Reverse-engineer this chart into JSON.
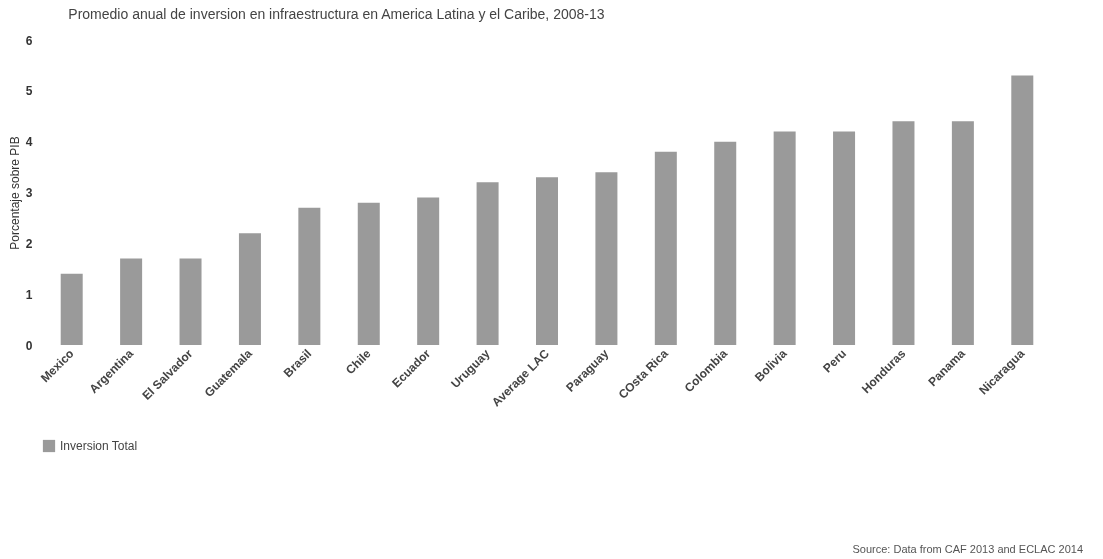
{
  "chart_data": {
    "type": "bar",
    "title": "Promedio anual de inversion en infraestructura en America Latina y el Caribe, 2008-13",
    "ylabel": "Porcentaje sobre PIB",
    "categories": [
      "Mexico",
      "Argentina",
      "El Salvador",
      "Guatemala",
      "Brasil",
      "Chile",
      "Ecuador",
      "Uruguay",
      "Average LAC",
      "Paraguay",
      "COsta Rica",
      "Colombia",
      "Bolivia",
      "Peru",
      "Honduras",
      "Panama",
      "Nicaragua"
    ],
    "series": [
      {
        "name": "Inversion Total",
        "color": "#9a9a9a",
        "values": [
          1.4,
          1.7,
          1.7,
          2.2,
          2.7,
          2.8,
          2.9,
          3.2,
          3.3,
          3.4,
          3.8,
          4.0,
          4.2,
          4.2,
          4.4,
          4.4,
          5.3
        ]
      }
    ],
    "ylim": [
      0,
      6
    ],
    "yticks": [
      0,
      1,
      2,
      3,
      4,
      5,
      6
    ],
    "grid": false,
    "legend": "bottom",
    "annotations": [
      "Source: Data from CAF 2013 and ECLAC 2014"
    ]
  }
}
